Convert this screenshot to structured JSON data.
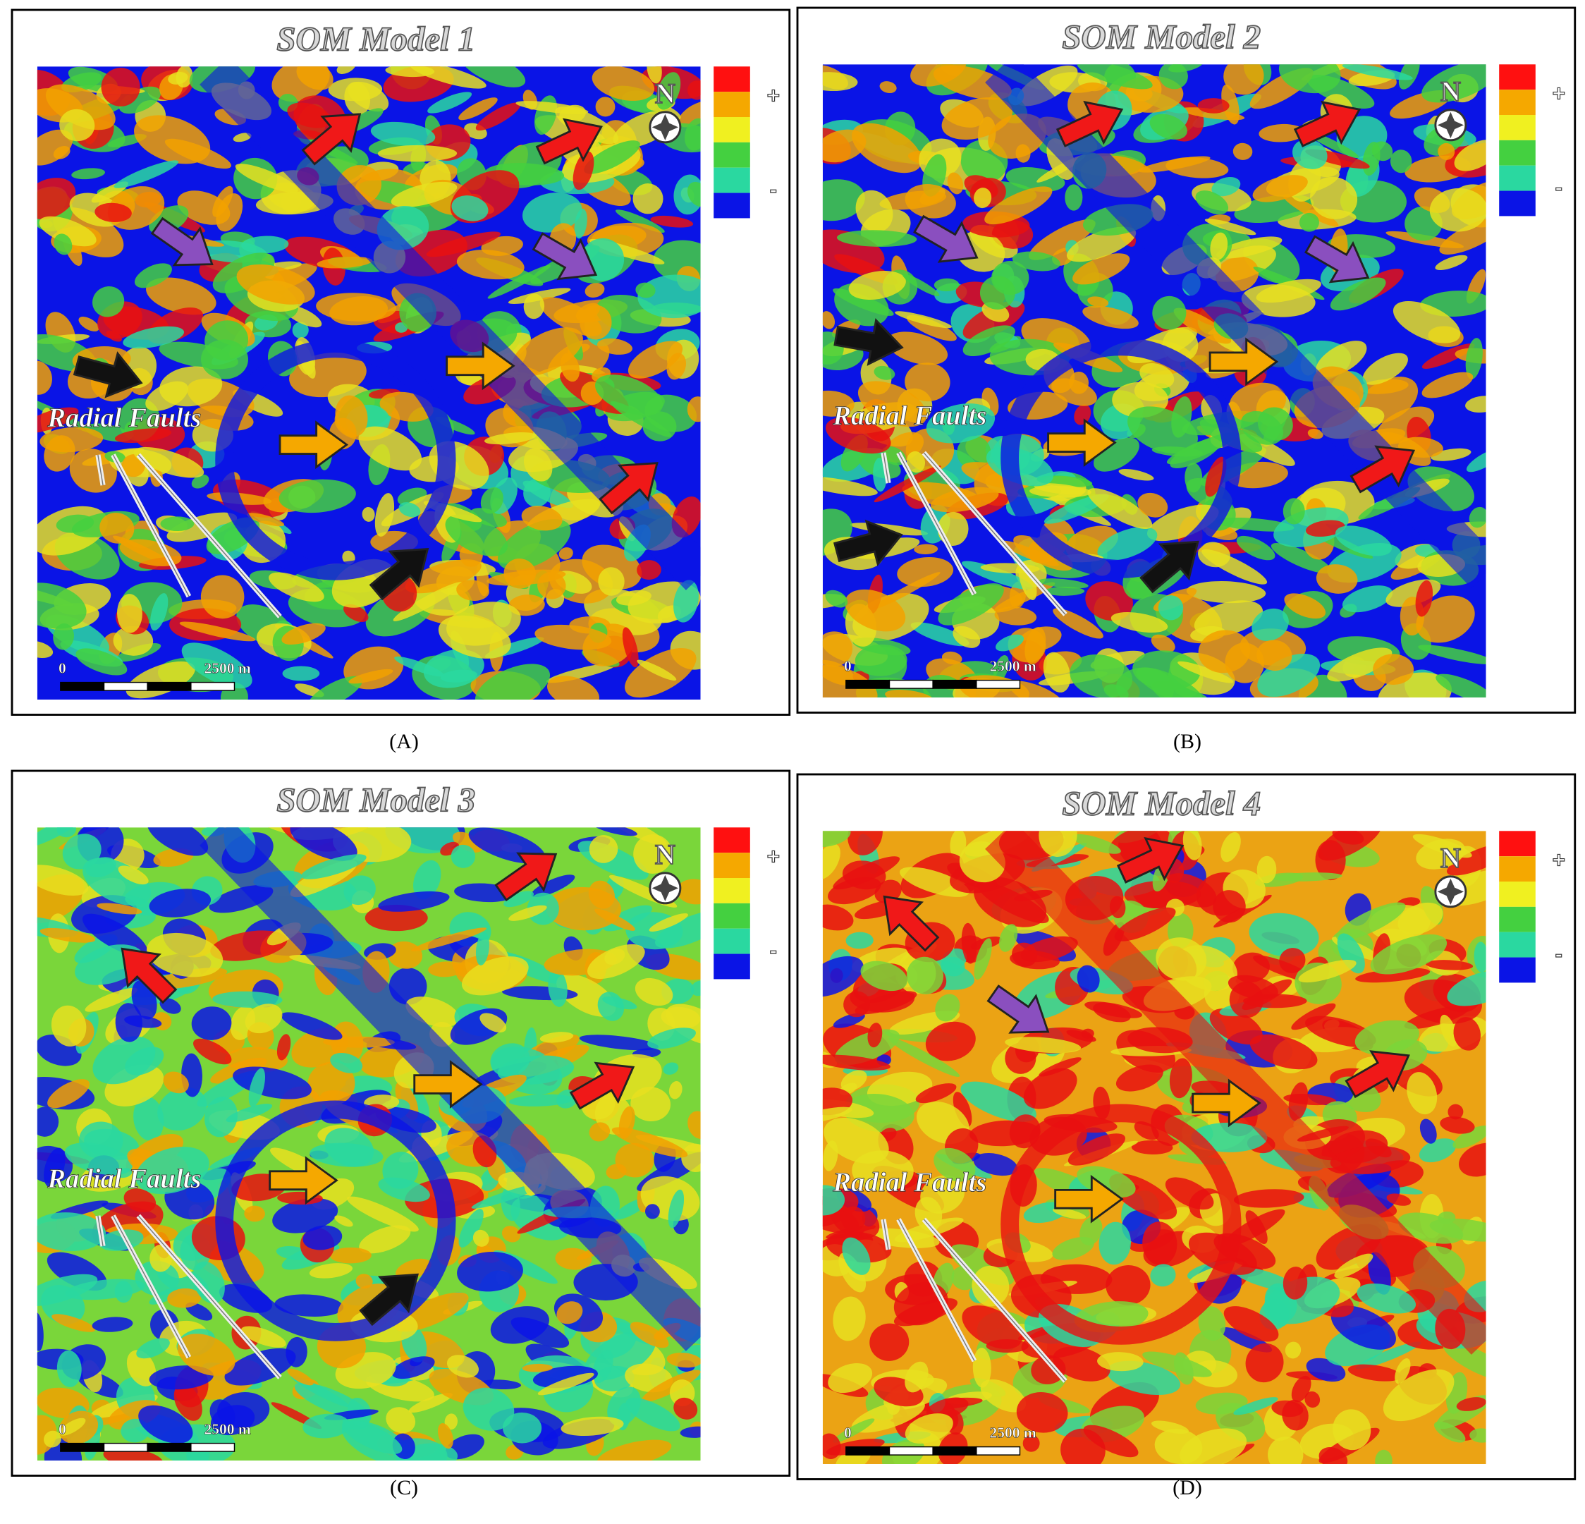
{
  "panels": [
    {
      "title": "SOM Model 1",
      "caption": "(A)",
      "fault_label": "Radial Faults",
      "scale_start": "0",
      "scale_end": "2500 m",
      "north": "N",
      "legend_plus": "+",
      "legend_minus": "-"
    },
    {
      "title": "SOM Model 2",
      "caption": "(B)",
      "fault_label": "Radial Faults",
      "scale_start": "0",
      "scale_end": "2500 m",
      "north": "N",
      "legend_plus": "+",
      "legend_minus": "-"
    },
    {
      "title": "SOM Model 3",
      "caption": "(C)",
      "fault_label": "Radial Faults",
      "scale_start": "0",
      "scale_end": "2500 m",
      "north": "N",
      "legend_plus": "+",
      "legend_minus": "-"
    },
    {
      "title": "SOM Model 4",
      "caption": "(D)",
      "fault_label": "Radial Faults",
      "scale_start": "0",
      "scale_end": "2500 m",
      "north": "N",
      "legend_plus": "+",
      "legend_minus": "-"
    }
  ]
}
